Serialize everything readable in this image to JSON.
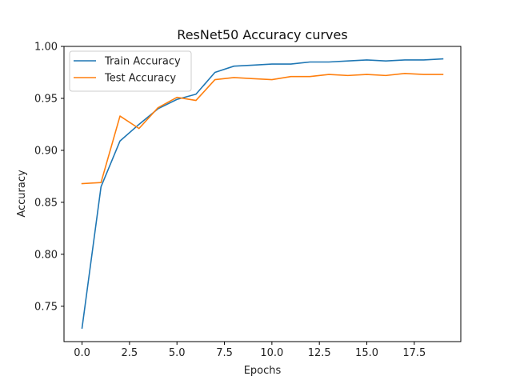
{
  "chart_data": {
    "type": "line",
    "title": "ResNet50 Accuracy curves",
    "xlabel": "Epochs",
    "ylabel": "Accuracy",
    "xlim": [
      -0.95,
      19.95
    ],
    "ylim": [
      0.716,
      1.0
    ],
    "x_ticks": [
      0.0,
      2.5,
      5.0,
      7.5,
      10.0,
      12.5,
      15.0,
      17.5
    ],
    "x_tick_labels": [
      "0.0",
      "2.5",
      "5.0",
      "7.5",
      "10.0",
      "12.5",
      "15.0",
      "17.5"
    ],
    "y_ticks": [
      0.75,
      0.8,
      0.85,
      0.9,
      0.95,
      1.0
    ],
    "y_tick_labels": [
      "0.75",
      "0.80",
      "0.85",
      "0.90",
      "0.95",
      "1.00"
    ],
    "grid": false,
    "legend_position": "top-left",
    "x": [
      0,
      1,
      2,
      3,
      4,
      5,
      6,
      7,
      8,
      9,
      10,
      11,
      12,
      13,
      14,
      15,
      16,
      17,
      18,
      19
    ],
    "series": [
      {
        "name": "Train Accuracy",
        "color": "#1f77b4",
        "values": [
          0.729,
          0.865,
          0.909,
          0.925,
          0.94,
          0.949,
          0.954,
          0.975,
          0.981,
          0.982,
          0.983,
          0.983,
          0.985,
          0.985,
          0.986,
          0.987,
          0.986,
          0.987,
          0.987,
          0.988
        ]
      },
      {
        "name": "Test Accuracy",
        "color": "#ff7f0e",
        "values": [
          0.868,
          0.869,
          0.933,
          0.921,
          0.941,
          0.951,
          0.948,
          0.968,
          0.97,
          0.969,
          0.968,
          0.971,
          0.971,
          0.973,
          0.972,
          0.973,
          0.972,
          0.974,
          0.973,
          0.973
        ]
      }
    ]
  }
}
